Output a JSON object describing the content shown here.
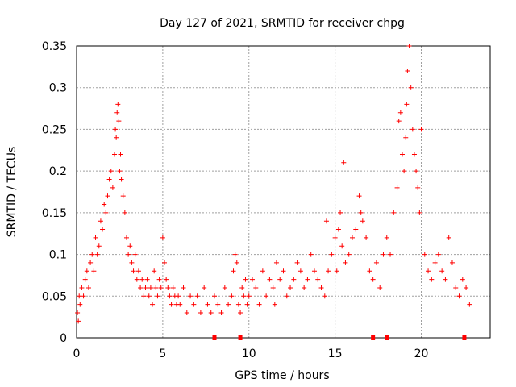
{
  "chart_data": {
    "type": "scatter",
    "title": "Day 127 of 2021, SRMTID for receiver chpg",
    "xlabel": "GPS time / hours",
    "ylabel": "SRMTID / TECUs",
    "xlim": [
      0,
      24
    ],
    "ylim": [
      0,
      0.35
    ],
    "xticks": [
      0,
      5,
      10,
      15,
      20
    ],
    "xtick_labels": [
      "0",
      "5",
      "10",
      "15",
      "20"
    ],
    "yticks": [
      0,
      0.05,
      0.1,
      0.15,
      0.2,
      0.25,
      0.3,
      0.35
    ],
    "ytick_labels": [
      "0",
      "0.05",
      "0.1",
      "0.15",
      "0.2",
      "0.25",
      "0.3",
      "0.35"
    ],
    "grid": true,
    "marker": "+",
    "color": "#ff0000",
    "series": [
      {
        "name": "SRMTID",
        "x": [
          0.05,
          0.1,
          0.15,
          0.2,
          0.3,
          0.4,
          0.5,
          0.6,
          0.7,
          0.8,
          0.9,
          1.0,
          1.1,
          1.2,
          1.3,
          1.4,
          1.5,
          1.6,
          1.7,
          1.8,
          1.9,
          2.0,
          2.1,
          2.2,
          2.25,
          2.3,
          2.35,
          2.4,
          2.45,
          2.5,
          2.55,
          2.6,
          2.7,
          2.8,
          2.9,
          3.0,
          3.1,
          3.2,
          3.3,
          3.4,
          3.5,
          3.6,
          3.7,
          3.8,
          3.9,
          4.0,
          4.1,
          4.2,
          4.3,
          4.4,
          4.5,
          4.6,
          4.7,
          4.8,
          4.9,
          5.0,
          5.1,
          5.2,
          5.3,
          5.4,
          5.5,
          5.6,
          5.7,
          5.8,
          5.9,
          6.0,
          6.2,
          6.4,
          6.6,
          6.8,
          7.0,
          7.2,
          7.4,
          7.6,
          7.8,
          8.0,
          8.2,
          8.4,
          8.6,
          8.8,
          9.0,
          9.1,
          9.2,
          9.3,
          9.4,
          9.5,
          9.6,
          9.7,
          9.8,
          9.9,
          10.0,
          10.2,
          10.4,
          10.6,
          10.8,
          11.0,
          11.2,
          11.4,
          11.5,
          11.6,
          11.8,
          12.0,
          12.2,
          12.4,
          12.6,
          12.8,
          13.0,
          13.2,
          13.4,
          13.6,
          13.8,
          14.0,
          14.2,
          14.4,
          14.5,
          14.6,
          14.8,
          15.0,
          15.1,
          15.2,
          15.3,
          15.4,
          15.5,
          15.6,
          15.8,
          16.0,
          16.2,
          16.4,
          16.5,
          16.6,
          16.8,
          17.0,
          17.2,
          17.4,
          17.6,
          17.8,
          18.0,
          18.2,
          18.4,
          18.6,
          18.7,
          18.8,
          18.9,
          19.0,
          19.1,
          19.15,
          19.2,
          19.3,
          19.4,
          19.5,
          19.6,
          19.7,
          19.8,
          19.9,
          20.0,
          20.2,
          20.4,
          20.6,
          20.8,
          21.0,
          21.2,
          21.4,
          21.6,
          21.8,
          22.0,
          22.2,
          22.4,
          22.6,
          22.8
        ],
        "y": [
          0.03,
          0.02,
          0.05,
          0.04,
          0.06,
          0.05,
          0.07,
          0.08,
          0.06,
          0.09,
          0.1,
          0.08,
          0.12,
          0.1,
          0.11,
          0.14,
          0.13,
          0.16,
          0.15,
          0.17,
          0.19,
          0.2,
          0.18,
          0.22,
          0.25,
          0.24,
          0.27,
          0.28,
          0.26,
          0.2,
          0.22,
          0.19,
          0.17,
          0.15,
          0.12,
          0.1,
          0.11,
          0.09,
          0.08,
          0.1,
          0.07,
          0.08,
          0.06,
          0.07,
          0.05,
          0.06,
          0.07,
          0.05,
          0.06,
          0.04,
          0.08,
          0.06,
          0.05,
          0.07,
          0.06,
          0.12,
          0.09,
          0.07,
          0.06,
          0.05,
          0.04,
          0.06,
          0.05,
          0.04,
          0.05,
          0.04,
          0.06,
          0.03,
          0.05,
          0.04,
          0.05,
          0.03,
          0.06,
          0.04,
          0.03,
          0.05,
          0.04,
          0.03,
          0.06,
          0.04,
          0.05,
          0.08,
          0.1,
          0.09,
          0.04,
          0.03,
          0.06,
          0.05,
          0.07,
          0.04,
          0.05,
          0.07,
          0.06,
          0.04,
          0.08,
          0.05,
          0.07,
          0.06,
          0.04,
          0.09,
          0.07,
          0.08,
          0.05,
          0.06,
          0.07,
          0.09,
          0.08,
          0.06,
          0.07,
          0.1,
          0.08,
          0.07,
          0.06,
          0.05,
          0.14,
          0.08,
          0.1,
          0.12,
          0.08,
          0.13,
          0.15,
          0.11,
          0.21,
          0.09,
          0.1,
          0.12,
          0.13,
          0.17,
          0.15,
          0.14,
          0.12,
          0.08,
          0.07,
          0.09,
          0.06,
          0.1,
          0.12,
          0.1,
          0.15,
          0.18,
          0.26,
          0.27,
          0.22,
          0.2,
          0.24,
          0.28,
          0.32,
          0.35,
          0.3,
          0.25,
          0.22,
          0.2,
          0.18,
          0.15,
          0.25,
          0.1,
          0.08,
          0.07,
          0.09,
          0.1,
          0.08,
          0.07,
          0.12,
          0.09,
          0.06,
          0.05,
          0.07,
          0.06,
          0.04
        ]
      }
    ],
    "data_gaps_x": [
      8.0,
      9.5,
      17.2,
      18.0,
      22.5
    ]
  }
}
